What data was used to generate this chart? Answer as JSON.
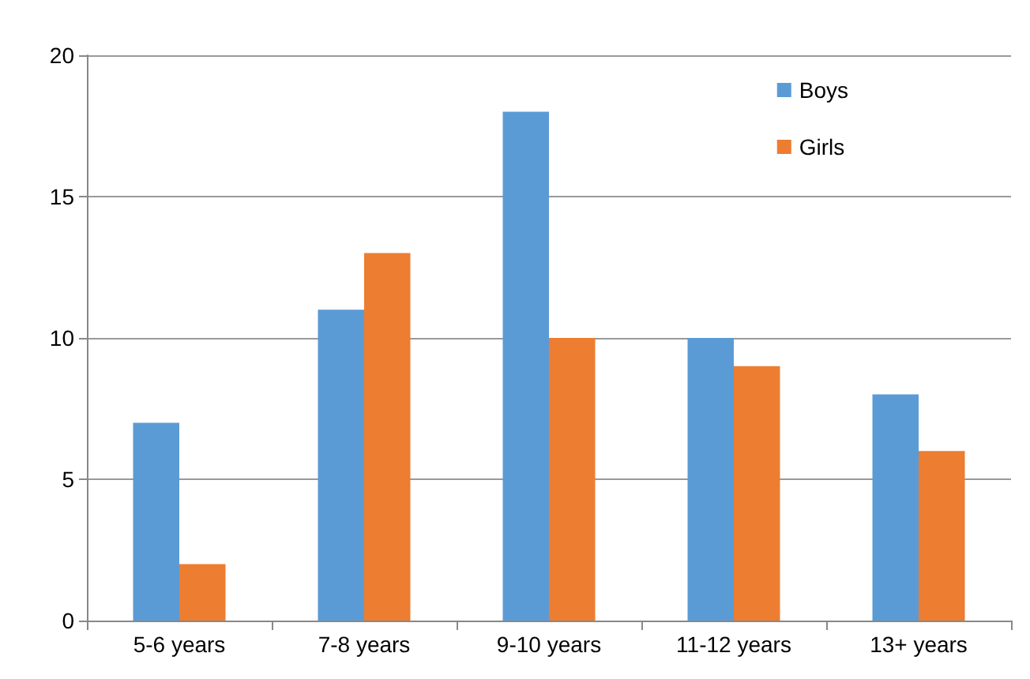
{
  "chart_data": {
    "type": "bar",
    "categories": [
      "5-6 years",
      "7-8 years",
      "9-10 years",
      "11-12 years",
      "13+ years"
    ],
    "series": [
      {
        "name": "Boys",
        "color": "#5b9bd5",
        "values": [
          7,
          11,
          18,
          10,
          8
        ]
      },
      {
        "name": "Girls",
        "color": "#ed7d31",
        "values": [
          2,
          13,
          10,
          9,
          6
        ]
      }
    ],
    "ylim": [
      0,
      20
    ],
    "yticks": [
      0,
      5,
      10,
      15,
      20
    ],
    "grid": "y",
    "legend": "top right"
  }
}
